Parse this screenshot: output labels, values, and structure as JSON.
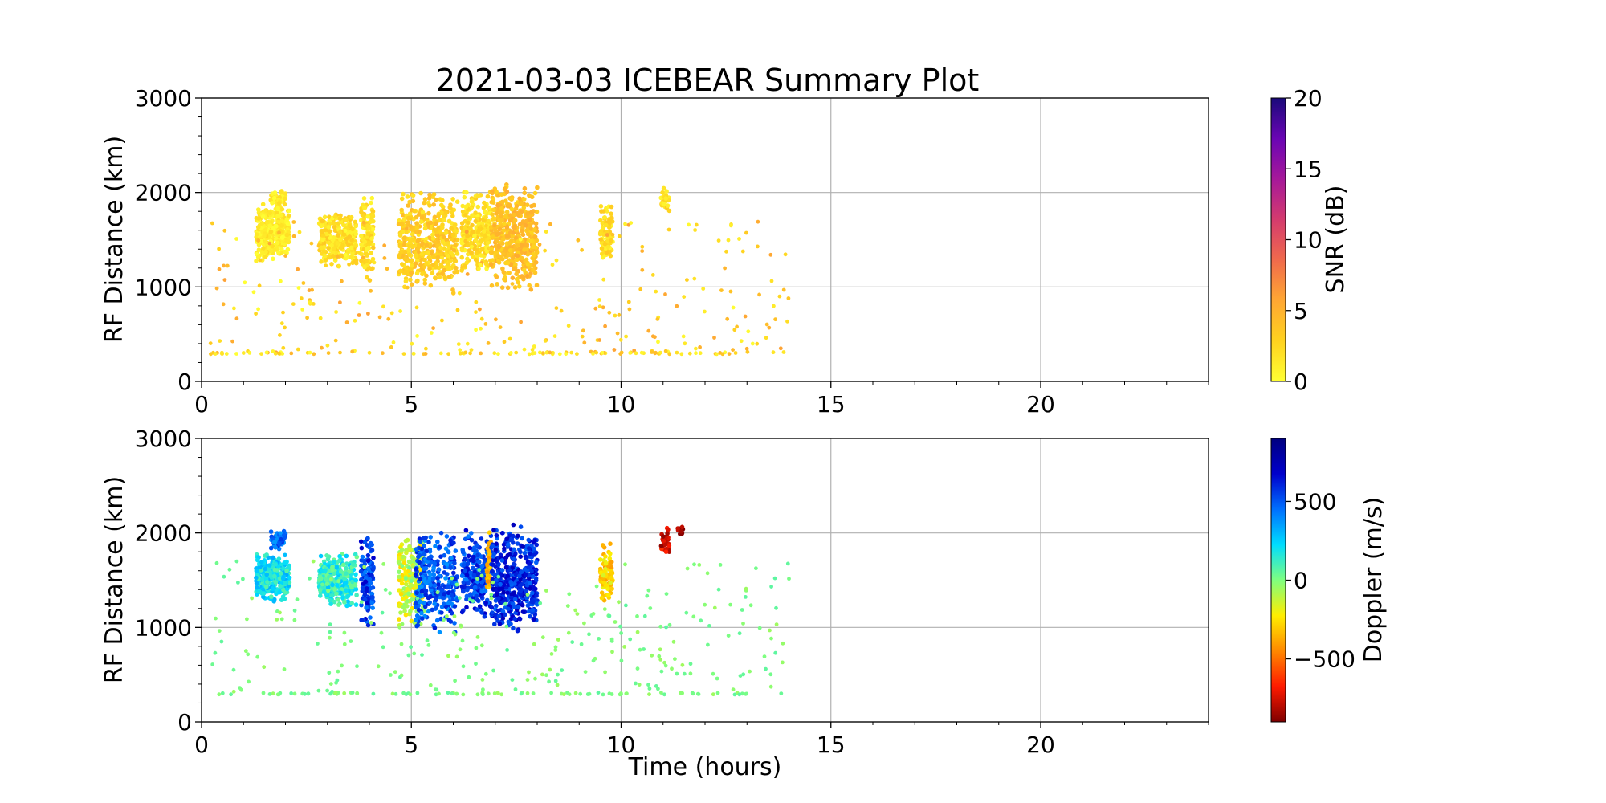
{
  "chart_data": [
    {
      "type": "scatter",
      "title": "2021-03-03 ICEBEAR Summary Plot",
      "xlabel": "",
      "ylabel": "RF Distance (km)",
      "xlim": [
        0,
        24
      ],
      "ylim": [
        0,
        3000
      ],
      "x_ticks": [
        0,
        5,
        10,
        15,
        20
      ],
      "y_ticks": [
        0,
        1000,
        2000,
        3000
      ],
      "grid": true,
      "colorbar": {
        "label": "SNR (dB)",
        "range": [
          0,
          20
        ],
        "ticks": [
          0,
          5,
          10,
          15,
          20
        ],
        "colors": [
          "#ffff33",
          "#ffd21f",
          "#ffa733",
          "#f06a4c",
          "#d43b6e",
          "#a6189a",
          "#6a05b4",
          "#1a0a7a"
        ]
      },
      "point_color": "#f5c518",
      "clusters": [
        {
          "x": [
            1.3,
            2.1
          ],
          "y": [
            1250,
            1900
          ],
          "n": 300,
          "snr": 1
        },
        {
          "x": [
            1.65,
            2.0
          ],
          "y": [
            1800,
            2050
          ],
          "n": 50,
          "snr": 1
        },
        {
          "x": [
            2.8,
            3.7
          ],
          "y": [
            1200,
            1800
          ],
          "n": 280,
          "snr": 2
        },
        {
          "x": [
            3.8,
            4.1
          ],
          "y": [
            1000,
            2000
          ],
          "n": 120,
          "snr": 2
        },
        {
          "x": [
            4.7,
            6.1
          ],
          "y": [
            900,
            2050
          ],
          "n": 450,
          "snr": 3
        },
        {
          "x": [
            6.2,
            6.9
          ],
          "y": [
            1100,
            2050
          ],
          "n": 250,
          "snr": 2
        },
        {
          "x": [
            6.9,
            8.0
          ],
          "y": [
            950,
            2100
          ],
          "n": 450,
          "snr": 4
        },
        {
          "x": [
            9.5,
            9.8
          ],
          "y": [
            1250,
            1900
          ],
          "n": 90,
          "snr": 2
        },
        {
          "x": [
            10.95,
            11.15
          ],
          "y": [
            1750,
            2070
          ],
          "n": 30,
          "snr": 2
        },
        {
          "x": [
            0.2,
            14.0
          ],
          "y": [
            300,
            1700
          ],
          "n": 260,
          "snr": 3,
          "sparse": true
        },
        {
          "x": [
            0.2,
            13.0
          ],
          "y": [
            290,
            310
          ],
          "n": 90,
          "snr": 2,
          "sparse": true
        }
      ]
    },
    {
      "type": "scatter",
      "title": "",
      "xlabel": "Time (hours)",
      "ylabel": "RF Distance (km)",
      "xlim": [
        0,
        24
      ],
      "ylim": [
        0,
        3000
      ],
      "x_ticks": [
        0,
        5,
        10,
        15,
        20
      ],
      "y_ticks": [
        0,
        1000,
        2000,
        3000
      ],
      "grid": true,
      "colorbar": {
        "label": "Doppler (m/s)",
        "range": [
          -900,
          900
        ],
        "ticks": [
          -500,
          0,
          500
        ],
        "tick_labels": [
          "−500",
          "0",
          "500"
        ],
        "colors": [
          "#7f0000",
          "#ff1a00",
          "#ff8800",
          "#ffee00",
          "#7fff7f",
          "#00ddff",
          "#0070ff",
          "#0000cc",
          "#00007f"
        ]
      },
      "clusters": [
        {
          "x": [
            1.3,
            2.1
          ],
          "y": [
            1250,
            1800
          ],
          "n": 300,
          "doppler": 200
        },
        {
          "x": [
            1.65,
            2.0
          ],
          "y": [
            1800,
            2050
          ],
          "n": 50,
          "doppler": 450
        },
        {
          "x": [
            2.8,
            3.7
          ],
          "y": [
            1200,
            1800
          ],
          "n": 280,
          "doppler": 150
        },
        {
          "x": [
            3.8,
            4.1
          ],
          "y": [
            1000,
            2000
          ],
          "n": 120,
          "doppler": 550
        },
        {
          "x": [
            4.7,
            5.3
          ],
          "y": [
            1000,
            2000
          ],
          "n": 200,
          "doppler": -150
        },
        {
          "x": [
            5.1,
            6.1
          ],
          "y": [
            900,
            2050
          ],
          "n": 300,
          "doppler": 500
        },
        {
          "x": [
            6.2,
            6.9
          ],
          "y": [
            1100,
            2050
          ],
          "n": 250,
          "doppler": 550
        },
        {
          "x": [
            6.8,
            6.9
          ],
          "y": [
            1300,
            2100
          ],
          "n": 40,
          "doppler": -400
        },
        {
          "x": [
            6.9,
            8.0
          ],
          "y": [
            950,
            2100
          ],
          "n": 450,
          "doppler": 600
        },
        {
          "x": [
            9.5,
            9.8
          ],
          "y": [
            1250,
            1900
          ],
          "n": 90,
          "doppler": -280
        },
        {
          "x": [
            10.95,
            11.15
          ],
          "y": [
            1750,
            2070
          ],
          "n": 30,
          "doppler": -750
        },
        {
          "x": [
            11.35,
            11.5
          ],
          "y": [
            1980,
            2080
          ],
          "n": 10,
          "doppler": -880
        },
        {
          "x": [
            0.2,
            14.0
          ],
          "y": [
            300,
            1700
          ],
          "n": 260,
          "doppler": 0,
          "sparse": true
        },
        {
          "x": [
            0.2,
            13.0
          ],
          "y": [
            290,
            310
          ],
          "n": 90,
          "doppler": 0,
          "sparse": true
        }
      ]
    }
  ]
}
